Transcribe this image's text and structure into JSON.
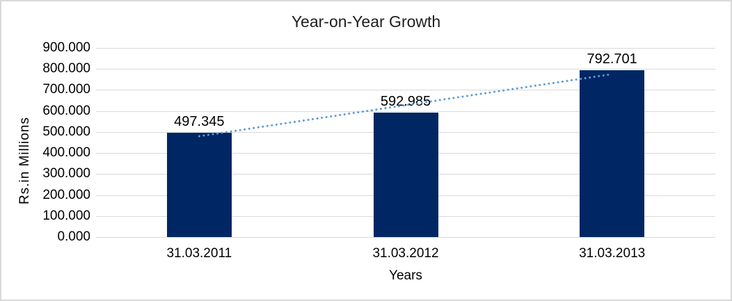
{
  "chart_data": {
    "type": "bar",
    "title": "Year-on-Year Growth",
    "categories": [
      "31.03.2011",
      "31.03.2012",
      "31.03.2013"
    ],
    "values": [
      497.345,
      592.985,
      792.701
    ],
    "data_labels": [
      "497.345",
      "592.985",
      "792.701"
    ],
    "xlabel": "Years",
    "ylabel": "Rs.in Millions",
    "ylim": [
      0,
      900
    ],
    "ytick_step": 100,
    "ytick_labels": [
      "0.000",
      "100.000",
      "200.000",
      "300.000",
      "400.000",
      "500.000",
      "600.000",
      "700.000",
      "800.000",
      "900.000"
    ],
    "grid": true,
    "legend": "none",
    "trendline": {
      "type": "linear",
      "style": "dotted",
      "span": "first-to-last-category"
    },
    "colors": {
      "bar": "#002664",
      "trendline": "#5B9BD5",
      "gridline": "#D9D9D9",
      "axis_text": "#000000",
      "title_text": "#1F1F1F",
      "background": "#FFFFFF",
      "border": "#D9D9D9"
    }
  }
}
